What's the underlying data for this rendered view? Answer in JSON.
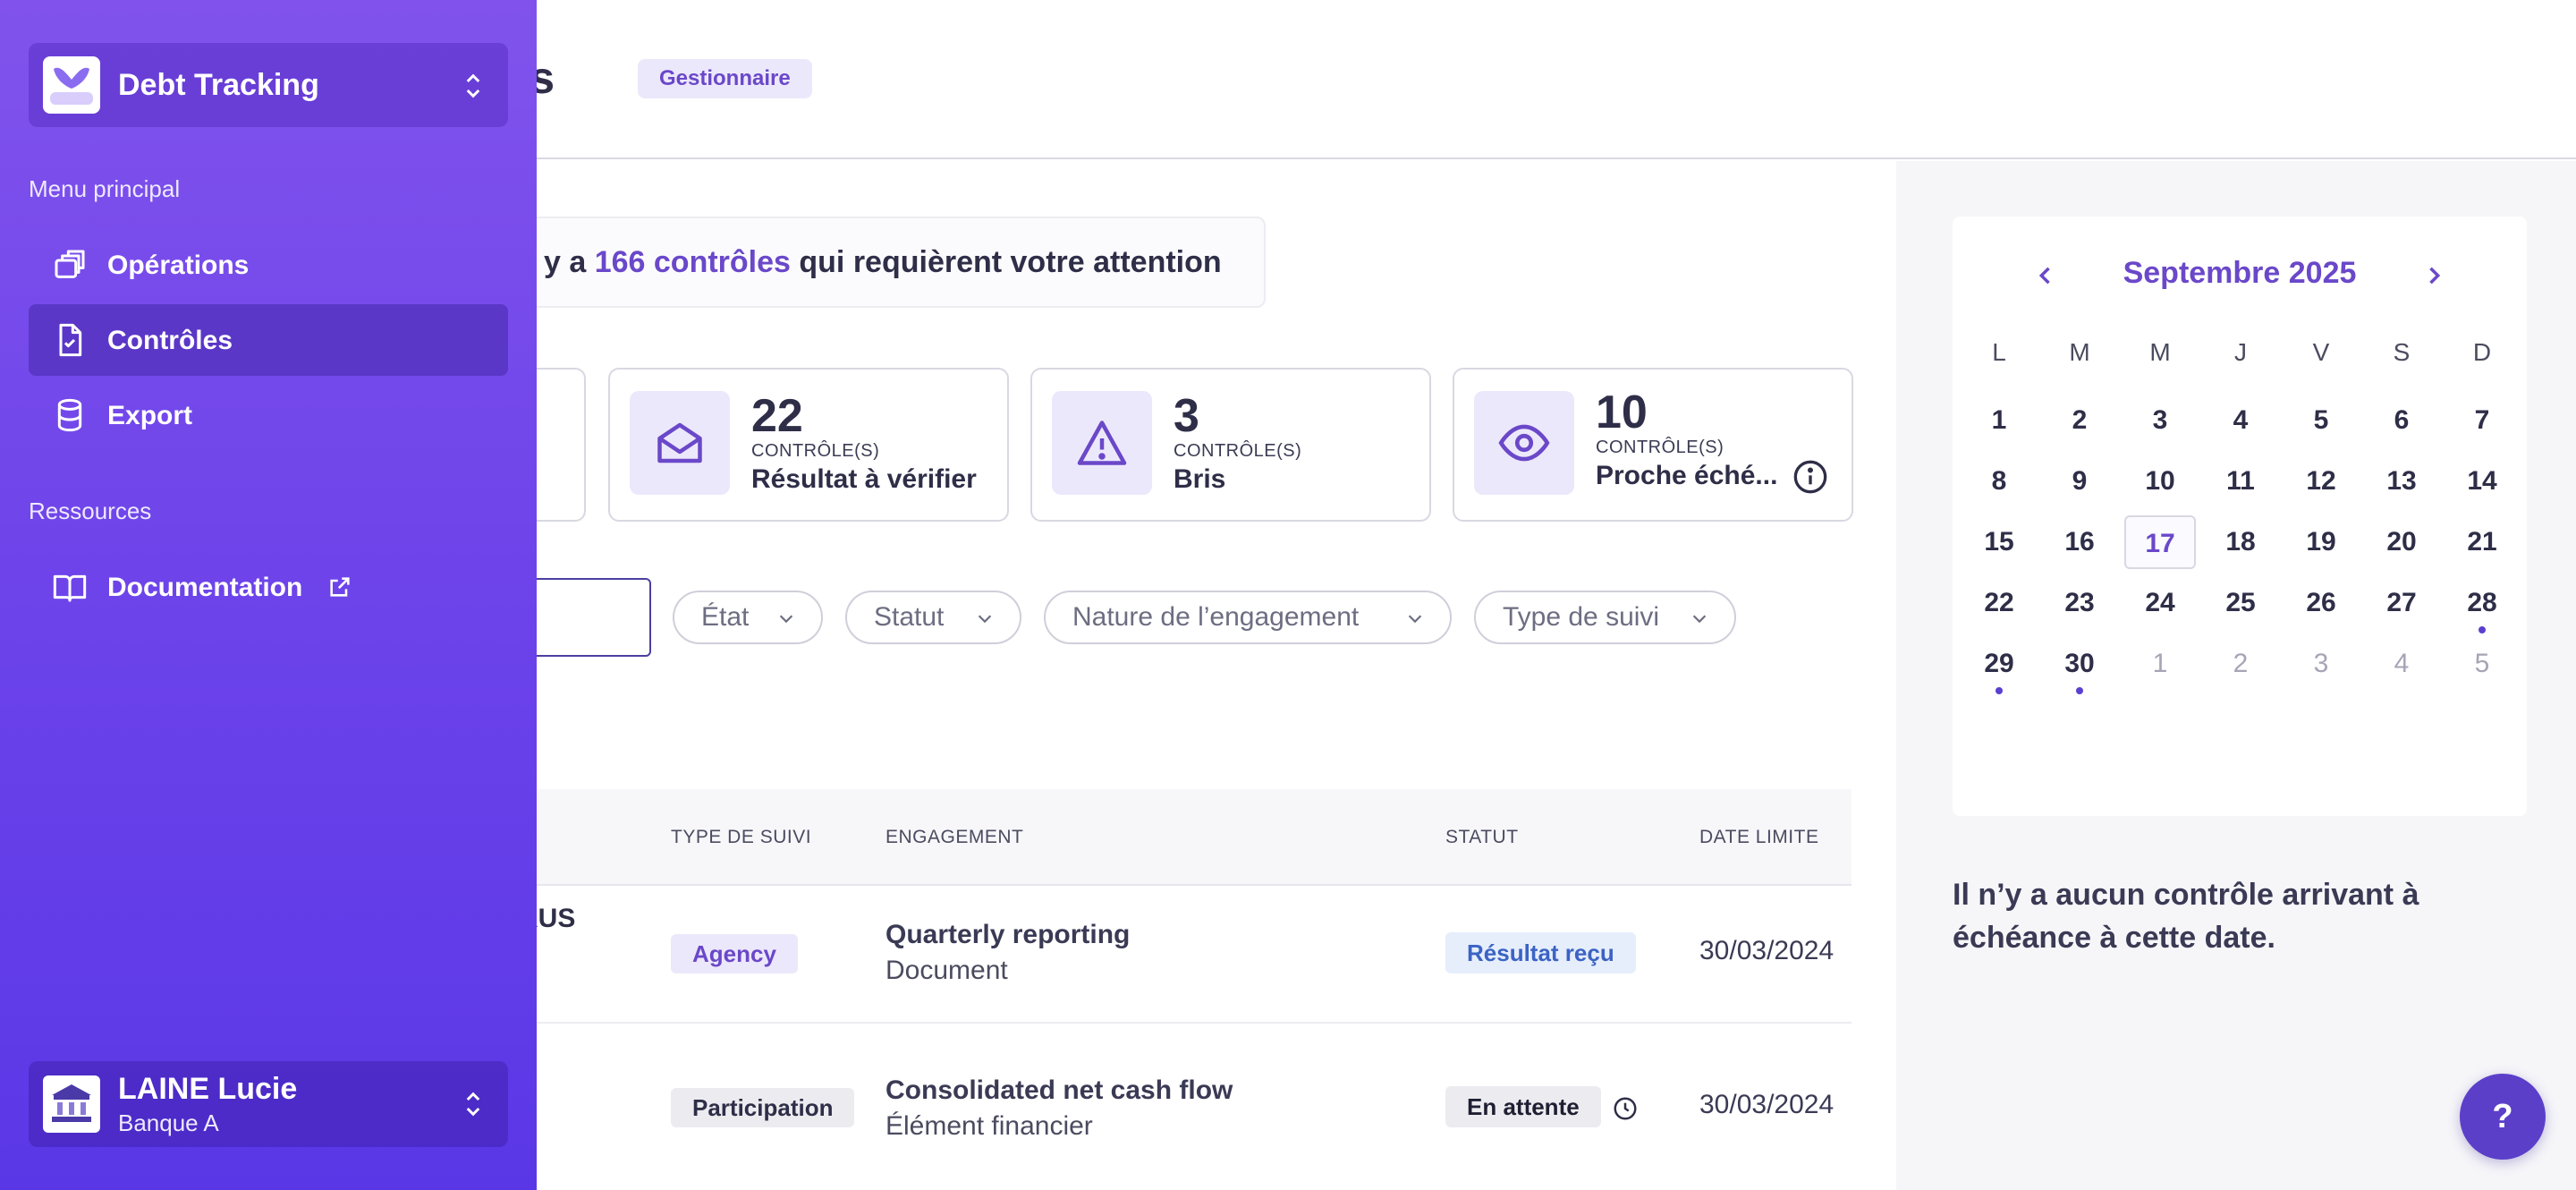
{
  "header": {
    "title": "ôles",
    "role_badge": "Gestionnaire"
  },
  "attention": {
    "prefix": "y a ",
    "count": "166 contrôles",
    "suffix": " qui requièrent votre attention"
  },
  "stats": [
    {
      "value": "22",
      "small": "CONTRÔLE(S)",
      "label": "Résultat à vérifier",
      "icon": "envelope-open-icon"
    },
    {
      "value": "3",
      "small": "CONTRÔLE(S)",
      "label": "Bris",
      "icon": "warning-triangle-icon"
    },
    {
      "value": "10",
      "small": "CONTRÔLE(S)",
      "label": "Proche éché...",
      "icon": "eye-icon"
    }
  ],
  "filters": {
    "etat": "État",
    "statut": "Statut",
    "nature": "Nature de l’engagement",
    "type_suivi": "Type de suivi"
  },
  "table": {
    "headers": {
      "type_suivi": "TYPE DE SUIVI",
      "engagement": "ENGAGEMENT",
      "statut": "STATUT",
      "date_limite": "DATE LIMITE"
    },
    "rows": [
      {
        "cut": "RUS",
        "type": "Agency",
        "title": "Quarterly reporting",
        "subtitle": "Document",
        "status": "Résultat reçu",
        "date": "30/03/2024"
      },
      {
        "cut": "",
        "type": "Participation",
        "title": "Consolidated net cash flow",
        "subtitle": "Élément financier",
        "status": "En attente",
        "date": "30/03/2024"
      }
    ]
  },
  "calendar": {
    "month_label": "Septembre 2025",
    "weekdays": [
      "L",
      "M",
      "M",
      "J",
      "V",
      "S",
      "D"
    ],
    "weeks": [
      [
        "1",
        "2",
        "3",
        "4",
        "5",
        "6",
        "7"
      ],
      [
        "8",
        "9",
        "10",
        "11",
        "12",
        "13",
        "14"
      ],
      [
        "15",
        "16",
        "17",
        "18",
        "19",
        "20",
        "21"
      ],
      [
        "22",
        "23",
        "24",
        "25",
        "26",
        "27",
        "28"
      ],
      [
        "29",
        "30",
        "1",
        "2",
        "3",
        "4",
        "5"
      ]
    ],
    "selected_day": "17",
    "days_with_events": [
      "28",
      "29",
      "30"
    ],
    "empty_message": "Il n’y a aucun contrôle arrivant à échéance à cette date."
  },
  "help": {
    "label": "?"
  },
  "sidebar": {
    "app_name": "Debt Tracking",
    "main_menu_label": "Menu principal",
    "items": [
      {
        "label": "Opérations",
        "icon": "stack-icon"
      },
      {
        "label": "Contrôles",
        "icon": "file-check-icon",
        "active": true
      },
      {
        "label": "Export",
        "icon": "database-icon"
      }
    ],
    "resources_label": "Ressources",
    "resources": [
      {
        "label": "Documentation",
        "icon": "book-open-icon"
      }
    ],
    "user": {
      "name": "LAINE Lucie",
      "org": "Banque A"
    }
  },
  "colors": {
    "accent": "#6a48c9",
    "sidebar_top": "#8153ec",
    "sidebar_bottom": "#5a37e6"
  }
}
